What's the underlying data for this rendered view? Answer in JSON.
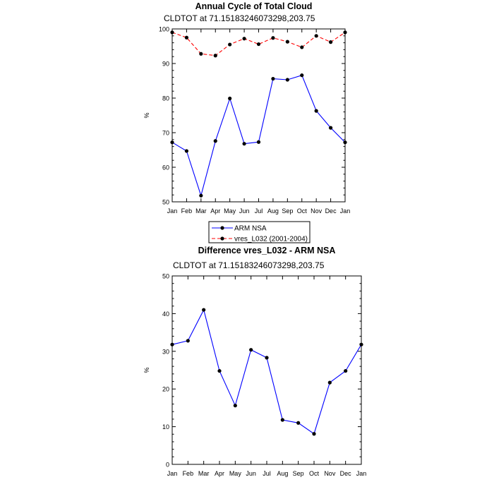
{
  "chart_data": [
    {
      "type": "line",
      "title": "Annual Cycle of Total Cloud",
      "subtitle": "CLDTOT at 71.15183246073298,203.75",
      "ylabel": "%",
      "ylim": [
        50,
        100
      ],
      "yticks": [
        50,
        60,
        70,
        80,
        90,
        100
      ],
      "categories": [
        "Jan",
        "Feb",
        "Mar",
        "Apr",
        "May",
        "Jun",
        "Jul",
        "Aug",
        "Sep",
        "Oct",
        "Nov",
        "Dec",
        "Jan"
      ],
      "grid": false,
      "legend_position": "bottom-center",
      "series": [
        {
          "name": "ARM NSA",
          "color": "#0000ff",
          "dash": "solid",
          "values": [
            67.2,
            64.7,
            51.8,
            67.6,
            79.9,
            66.8,
            67.3,
            85.6,
            85.3,
            86.6,
            76.3,
            71.4,
            67.2
          ]
        },
        {
          "name": "vres_L032 (2001-2004)",
          "color": "#ff0000",
          "dash": "dashed",
          "values": [
            99.0,
            97.5,
            92.8,
            92.3,
            95.5,
            97.2,
            95.6,
            97.4,
            96.3,
            94.7,
            98.0,
            96.2,
            99.0
          ]
        }
      ]
    },
    {
      "type": "line",
      "title": "Difference vres_L032 - ARM NSA",
      "subtitle": "CLDTOT at 71.15183246073298,203.75",
      "ylabel": "%",
      "ylim": [
        0,
        50
      ],
      "yticks": [
        0,
        10,
        20,
        30,
        40,
        50
      ],
      "categories": [
        "Jan",
        "Feb",
        "Mar",
        "Apr",
        "May",
        "Jun",
        "Jul",
        "Aug",
        "Sep",
        "Oct",
        "Nov",
        "Dec",
        "Jan"
      ],
      "grid": false,
      "series": [
        {
          "color": "#0000ff",
          "dash": "solid",
          "values": [
            31.8,
            32.8,
            41.0,
            24.8,
            15.6,
            30.4,
            28.3,
            11.8,
            11.0,
            8.1,
            21.7,
            24.8,
            31.8
          ]
        }
      ]
    }
  ]
}
